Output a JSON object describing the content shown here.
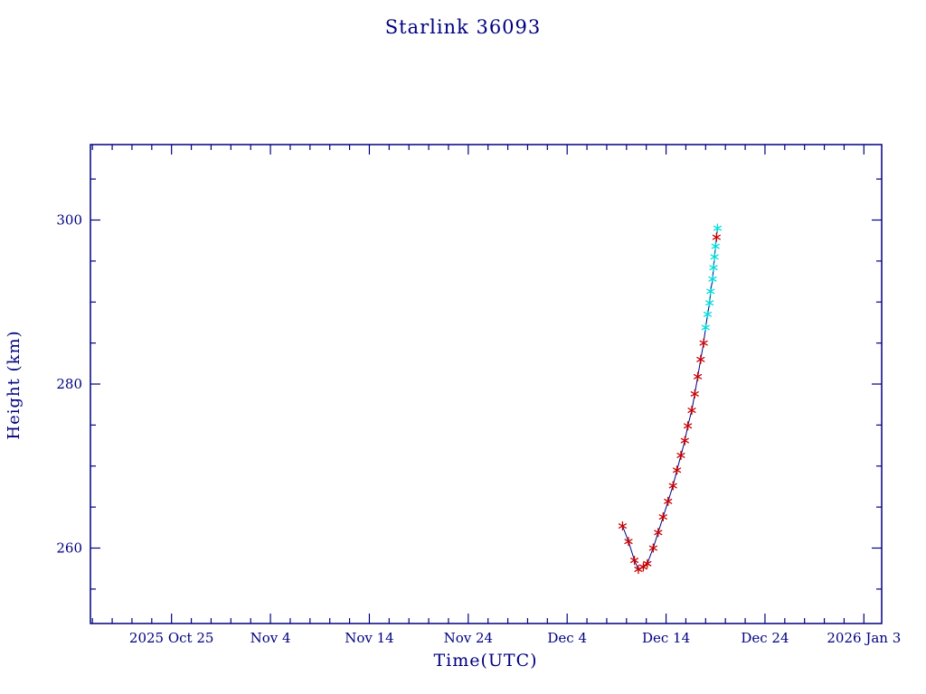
{
  "page": {
    "background": "#ffffff"
  },
  "chart_data": {
    "type": "line",
    "title": "Starlink 36093",
    "xlabel": "Time(UTC)",
    "ylabel": "Height (km)",
    "x_unit": "days since 2025 Oct 25",
    "xlim": [
      -8.2,
      71.8
    ],
    "ylim": [
      250.8,
      309.2
    ],
    "grid": false,
    "legend": "none",
    "xticks": [
      {
        "day": 0,
        "label": "2025 Oct 25"
      },
      {
        "day": 10,
        "label": "Nov 4"
      },
      {
        "day": 20,
        "label": "Nov 14"
      },
      {
        "day": 30,
        "label": "Nov 24"
      },
      {
        "day": 40,
        "label": "Dec 4"
      },
      {
        "day": 50,
        "label": "Dec 14"
      },
      {
        "day": 60,
        "label": "Dec 24"
      },
      {
        "day": 70,
        "label": "2026 Jan 3"
      }
    ],
    "yticks": [
      {
        "km": 260,
        "label": "260"
      },
      {
        "km": 280,
        "label": "280"
      },
      {
        "km": 300,
        "label": "300"
      }
    ],
    "minor_x_step_days": 2,
    "minor_y_step_km": 5,
    "colors": {
      "axis": "#000080",
      "line": "#000080",
      "red": "#c80000",
      "cyan": "#00dcdc"
    },
    "series": [
      {
        "name": "height",
        "marker": "asterisk",
        "points": [
          {
            "day": 45.6,
            "km": 262.7,
            "color": "red"
          },
          {
            "day": 46.2,
            "km": 260.8,
            "color": "red"
          },
          {
            "day": 46.8,
            "km": 258.5,
            "color": "red"
          },
          {
            "day": 47.2,
            "km": 257.4,
            "color": "red"
          },
          {
            "day": 47.7,
            "km": 257.7,
            "color": "red"
          },
          {
            "day": 48.1,
            "km": 258.1,
            "color": "red"
          },
          {
            "day": 48.7,
            "km": 260.0,
            "color": "red"
          },
          {
            "day": 49.2,
            "km": 261.9,
            "color": "red"
          },
          {
            "day": 49.7,
            "km": 263.8,
            "color": "red"
          },
          {
            "day": 50.2,
            "km": 265.7,
            "color": "red"
          },
          {
            "day": 50.7,
            "km": 267.6,
            "color": "red"
          },
          {
            "day": 51.1,
            "km": 269.5,
            "color": "red"
          },
          {
            "day": 51.5,
            "km": 271.3,
            "color": "red"
          },
          {
            "day": 51.9,
            "km": 273.1,
            "color": "red"
          },
          {
            "day": 52.2,
            "km": 274.9,
            "color": "red"
          },
          {
            "day": 52.6,
            "km": 276.8,
            "color": "red"
          },
          {
            "day": 52.9,
            "km": 278.8,
            "color": "red"
          },
          {
            "day": 53.2,
            "km": 280.9,
            "color": "red"
          },
          {
            "day": 53.5,
            "km": 283.0,
            "color": "red"
          },
          {
            "day": 53.8,
            "km": 285.0,
            "color": "red"
          },
          {
            "day": 54.0,
            "km": 286.9,
            "color": "cyan"
          },
          {
            "day": 54.2,
            "km": 288.5,
            "color": "cyan"
          },
          {
            "day": 54.4,
            "km": 289.9,
            "color": "cyan"
          },
          {
            "day": 54.5,
            "km": 291.3,
            "color": "cyan"
          },
          {
            "day": 54.7,
            "km": 292.8,
            "color": "cyan"
          },
          {
            "day": 54.8,
            "km": 294.2,
            "color": "cyan"
          },
          {
            "day": 54.9,
            "km": 295.5,
            "color": "cyan"
          },
          {
            "day": 55.0,
            "km": 296.8,
            "color": "cyan"
          },
          {
            "day": 55.1,
            "km": 297.9,
            "color": "red"
          },
          {
            "day": 55.2,
            "km": 299.0,
            "color": "cyan"
          }
        ]
      }
    ]
  }
}
